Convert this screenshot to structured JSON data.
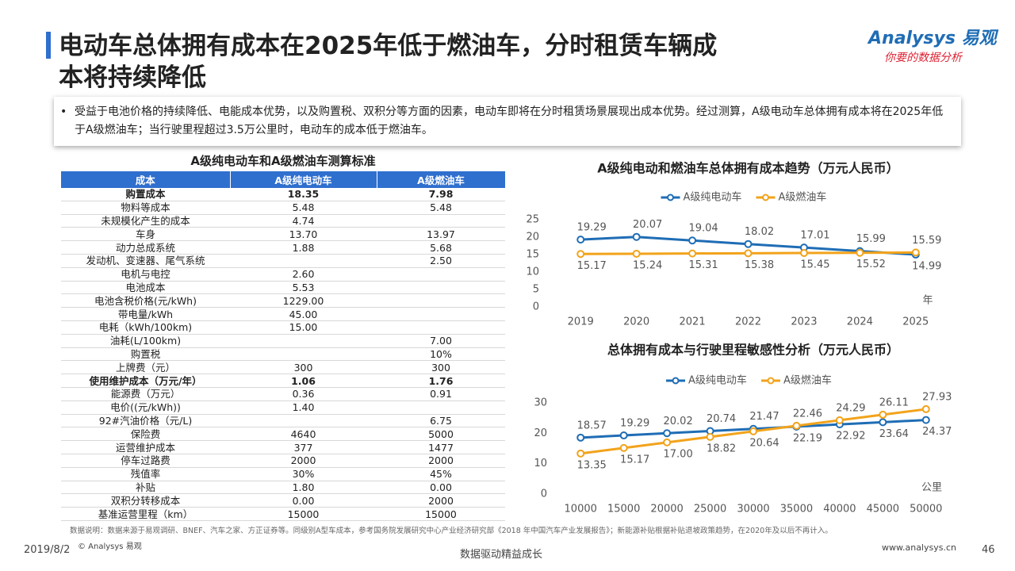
{
  "title": [
    "电动车总体拥有成本在2025年低于燃油车，分时租赁车辆成",
    "本将持续降低"
  ],
  "logo": {
    "name": "Analysys 易观",
    "slogan": "你要的数据分析"
  },
  "bullet": "受益于电池价格的持续降低、电能成本优势，以及购置税、双积分等方面的因素，电动车即将在分时租赁场景展现出成本优势。经过测算，A级电动车总体拥有成本将在2025年低于A级燃油车；当行驶里程超过3.5万公里时，电动车的成本低于燃油车。",
  "table": {
    "title": "A级纯电动车和A级燃油车测算标准",
    "header": [
      "成本",
      "A级纯电动车",
      "A级燃油车"
    ],
    "bold_rows": [
      0,
      14
    ],
    "rows": [
      [
        "购置成本",
        "18.35",
        "7.98"
      ],
      [
        "物料等成本",
        "5.48",
        "5.48"
      ],
      [
        "未规模化产生的成本",
        "4.74",
        null
      ],
      [
        "车身",
        "13.70",
        "13.97"
      ],
      [
        "动力总成系统",
        "1.88",
        "5.68"
      ],
      [
        "发动机、变速器、尾气系统",
        null,
        "2.50"
      ],
      [
        "电机与电控",
        "2.60",
        null
      ],
      [
        "电池成本",
        "5.53",
        null
      ],
      [
        "电池含税价格(元/kWh)",
        "1229.00",
        null
      ],
      [
        "带电量/kWh",
        "45.00",
        null
      ],
      [
        "电耗（kWh/100km)",
        "15.00",
        null
      ],
      [
        "油耗(L/100km)",
        null,
        "7.00"
      ],
      [
        "购置税",
        null,
        "10%"
      ],
      [
        "上牌费（元）",
        "300",
        "300"
      ],
      [
        "使用维护成本（万元/年）",
        "1.06",
        "1.76"
      ],
      [
        "能源费（万元）",
        "0.36",
        "0.91"
      ],
      [
        "电价((元/kWh))",
        "1.40",
        null
      ],
      [
        "92#汽油价格（元/L)",
        null,
        "6.75"
      ],
      [
        "保险费",
        "4640",
        "5000"
      ],
      [
        "运营维护成本",
        "377",
        "1477"
      ],
      [
        "停车过路费",
        "2000",
        "2000"
      ],
      [
        "残值率",
        "30%",
        "45%"
      ],
      [
        "补贴",
        "1.80",
        "0.00"
      ],
      [
        "双积分转移成本",
        "0.00",
        "2000"
      ],
      [
        "基准运营里程（km）",
        "15000",
        "15000"
      ]
    ]
  },
  "chart_data": [
    {
      "type": "line",
      "title": "A级纯电动和燃油车总体拥有成本趋势（万元人民币）",
      "x_label": "年",
      "categories": [
        "2019",
        "2020",
        "2021",
        "2022",
        "2023",
        "2024",
        "2025"
      ],
      "series": [
        {
          "name": "A级纯电动车",
          "color": "#1f6db5",
          "values": [
            19.29,
            20.07,
            19.04,
            18.02,
            17.01,
            15.99,
            14.99
          ],
          "value_labels": [
            "19.29",
            "20.07",
            "19.04",
            "18.02",
            "17.01",
            "15.99",
            "14.99"
          ]
        },
        {
          "name": "A级燃油车",
          "color": "#f2a31b",
          "values": [
            15.17,
            15.24,
            15.31,
            15.38,
            15.45,
            15.52,
            15.59
          ],
          "value_labels": [
            "15.17",
            "15.24",
            "15.31",
            "15.38",
            "15.45",
            "15.52",
            "15.59"
          ]
        }
      ],
      "ylim": [
        0,
        25
      ],
      "yticks": [
        0,
        5,
        10,
        15,
        20,
        25
      ]
    },
    {
      "type": "line",
      "title": "总体拥有成本与行驶里程敏感性分析（万元人民币）",
      "x_label": "公里",
      "x": [
        10000,
        15000,
        20000,
        25000,
        30000,
        35000,
        40000,
        45000,
        50000
      ],
      "xlim": [
        7500,
        52500
      ],
      "xticks": [
        10000,
        15000,
        20000,
        25000,
        30000,
        35000,
        40000,
        45000,
        50000
      ],
      "series": [
        {
          "name": "A级纯电动车",
          "color": "#1f6db5",
          "values": [
            18.57,
            19.29,
            20.02,
            20.74,
            21.47,
            22.19,
            22.92,
            23.64,
            24.37
          ],
          "value_labels": [
            "18.57",
            "19.29",
            "20.02",
            "20.74",
            "21.47",
            "22.19",
            "22.92",
            "23.64",
            "24.37"
          ]
        },
        {
          "name": "A级燃油车",
          "color": "#f2a31b",
          "values": [
            13.35,
            15.17,
            17.0,
            18.82,
            20.64,
            22.46,
            24.29,
            26.11,
            27.93
          ],
          "value_labels": [
            "13.35",
            "15.17",
            "17.00",
            "18.82",
            "20.64",
            "22.46",
            "24.29",
            "26.11",
            "27.93"
          ]
        }
      ],
      "ylim": [
        0,
        30
      ],
      "yticks": [
        0,
        10,
        20,
        30
      ]
    }
  ],
  "note": "数据说明：数据来源于易观调研、BNEF、汽车之家、方正证券等。同级别A型车成本，参考国务院发展研究中心产业经济研究部《2018 年中国汽车产业发展报告》；新能源补贴根据补贴退坡政策趋势，在2020年及以后不再计入。",
  "footer": {
    "date": "2019/8/2",
    "copyright": "© Analysys 易观",
    "slogan": "数据驱动精益成长",
    "url": "www.analysys.cn",
    "page": "46"
  }
}
